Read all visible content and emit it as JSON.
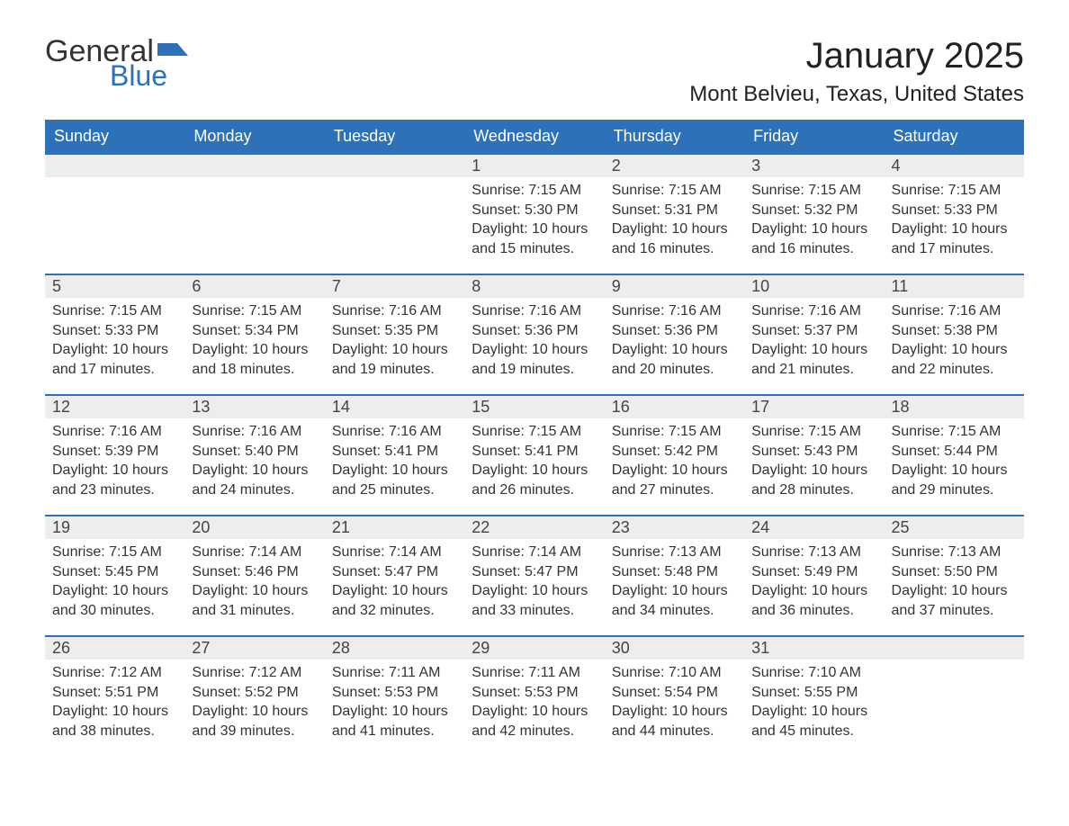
{
  "brand": {
    "word1": "General",
    "word2": "Blue",
    "accent_color": "#2d72b8"
  },
  "title": "January 2025",
  "location": "Mont Belvieu, Texas, United States",
  "colors": {
    "header_bg": "#2d72b8",
    "header_text": "#ffffff",
    "daynum_bg": "#ededed",
    "border_top": "#2d72b8",
    "body_text": "#333333"
  },
  "weekdays": [
    "Sunday",
    "Monday",
    "Tuesday",
    "Wednesday",
    "Thursday",
    "Friday",
    "Saturday"
  ],
  "weeks": [
    [
      {
        "day": "",
        "sunrise": "",
        "sunset": "",
        "daylight1": "",
        "daylight2": ""
      },
      {
        "day": "",
        "sunrise": "",
        "sunset": "",
        "daylight1": "",
        "daylight2": ""
      },
      {
        "day": "",
        "sunrise": "",
        "sunset": "",
        "daylight1": "",
        "daylight2": ""
      },
      {
        "day": "1",
        "sunrise": "Sunrise: 7:15 AM",
        "sunset": "Sunset: 5:30 PM",
        "daylight1": "Daylight: 10 hours",
        "daylight2": "and 15 minutes."
      },
      {
        "day": "2",
        "sunrise": "Sunrise: 7:15 AM",
        "sunset": "Sunset: 5:31 PM",
        "daylight1": "Daylight: 10 hours",
        "daylight2": "and 16 minutes."
      },
      {
        "day": "3",
        "sunrise": "Sunrise: 7:15 AM",
        "sunset": "Sunset: 5:32 PM",
        "daylight1": "Daylight: 10 hours",
        "daylight2": "and 16 minutes."
      },
      {
        "day": "4",
        "sunrise": "Sunrise: 7:15 AM",
        "sunset": "Sunset: 5:33 PM",
        "daylight1": "Daylight: 10 hours",
        "daylight2": "and 17 minutes."
      }
    ],
    [
      {
        "day": "5",
        "sunrise": "Sunrise: 7:15 AM",
        "sunset": "Sunset: 5:33 PM",
        "daylight1": "Daylight: 10 hours",
        "daylight2": "and 17 minutes."
      },
      {
        "day": "6",
        "sunrise": "Sunrise: 7:15 AM",
        "sunset": "Sunset: 5:34 PM",
        "daylight1": "Daylight: 10 hours",
        "daylight2": "and 18 minutes."
      },
      {
        "day": "7",
        "sunrise": "Sunrise: 7:16 AM",
        "sunset": "Sunset: 5:35 PM",
        "daylight1": "Daylight: 10 hours",
        "daylight2": "and 19 minutes."
      },
      {
        "day": "8",
        "sunrise": "Sunrise: 7:16 AM",
        "sunset": "Sunset: 5:36 PM",
        "daylight1": "Daylight: 10 hours",
        "daylight2": "and 19 minutes."
      },
      {
        "day": "9",
        "sunrise": "Sunrise: 7:16 AM",
        "sunset": "Sunset: 5:36 PM",
        "daylight1": "Daylight: 10 hours",
        "daylight2": "and 20 minutes."
      },
      {
        "day": "10",
        "sunrise": "Sunrise: 7:16 AM",
        "sunset": "Sunset: 5:37 PM",
        "daylight1": "Daylight: 10 hours",
        "daylight2": "and 21 minutes."
      },
      {
        "day": "11",
        "sunrise": "Sunrise: 7:16 AM",
        "sunset": "Sunset: 5:38 PM",
        "daylight1": "Daylight: 10 hours",
        "daylight2": "and 22 minutes."
      }
    ],
    [
      {
        "day": "12",
        "sunrise": "Sunrise: 7:16 AM",
        "sunset": "Sunset: 5:39 PM",
        "daylight1": "Daylight: 10 hours",
        "daylight2": "and 23 minutes."
      },
      {
        "day": "13",
        "sunrise": "Sunrise: 7:16 AM",
        "sunset": "Sunset: 5:40 PM",
        "daylight1": "Daylight: 10 hours",
        "daylight2": "and 24 minutes."
      },
      {
        "day": "14",
        "sunrise": "Sunrise: 7:16 AM",
        "sunset": "Sunset: 5:41 PM",
        "daylight1": "Daylight: 10 hours",
        "daylight2": "and 25 minutes."
      },
      {
        "day": "15",
        "sunrise": "Sunrise: 7:15 AM",
        "sunset": "Sunset: 5:41 PM",
        "daylight1": "Daylight: 10 hours",
        "daylight2": "and 26 minutes."
      },
      {
        "day": "16",
        "sunrise": "Sunrise: 7:15 AM",
        "sunset": "Sunset: 5:42 PM",
        "daylight1": "Daylight: 10 hours",
        "daylight2": "and 27 minutes."
      },
      {
        "day": "17",
        "sunrise": "Sunrise: 7:15 AM",
        "sunset": "Sunset: 5:43 PM",
        "daylight1": "Daylight: 10 hours",
        "daylight2": "and 28 minutes."
      },
      {
        "day": "18",
        "sunrise": "Sunrise: 7:15 AM",
        "sunset": "Sunset: 5:44 PM",
        "daylight1": "Daylight: 10 hours",
        "daylight2": "and 29 minutes."
      }
    ],
    [
      {
        "day": "19",
        "sunrise": "Sunrise: 7:15 AM",
        "sunset": "Sunset: 5:45 PM",
        "daylight1": "Daylight: 10 hours",
        "daylight2": "and 30 minutes."
      },
      {
        "day": "20",
        "sunrise": "Sunrise: 7:14 AM",
        "sunset": "Sunset: 5:46 PM",
        "daylight1": "Daylight: 10 hours",
        "daylight2": "and 31 minutes."
      },
      {
        "day": "21",
        "sunrise": "Sunrise: 7:14 AM",
        "sunset": "Sunset: 5:47 PM",
        "daylight1": "Daylight: 10 hours",
        "daylight2": "and 32 minutes."
      },
      {
        "day": "22",
        "sunrise": "Sunrise: 7:14 AM",
        "sunset": "Sunset: 5:47 PM",
        "daylight1": "Daylight: 10 hours",
        "daylight2": "and 33 minutes."
      },
      {
        "day": "23",
        "sunrise": "Sunrise: 7:13 AM",
        "sunset": "Sunset: 5:48 PM",
        "daylight1": "Daylight: 10 hours",
        "daylight2": "and 34 minutes."
      },
      {
        "day": "24",
        "sunrise": "Sunrise: 7:13 AM",
        "sunset": "Sunset: 5:49 PM",
        "daylight1": "Daylight: 10 hours",
        "daylight2": "and 36 minutes."
      },
      {
        "day": "25",
        "sunrise": "Sunrise: 7:13 AM",
        "sunset": "Sunset: 5:50 PM",
        "daylight1": "Daylight: 10 hours",
        "daylight2": "and 37 minutes."
      }
    ],
    [
      {
        "day": "26",
        "sunrise": "Sunrise: 7:12 AM",
        "sunset": "Sunset: 5:51 PM",
        "daylight1": "Daylight: 10 hours",
        "daylight2": "and 38 minutes."
      },
      {
        "day": "27",
        "sunrise": "Sunrise: 7:12 AM",
        "sunset": "Sunset: 5:52 PM",
        "daylight1": "Daylight: 10 hours",
        "daylight2": "and 39 minutes."
      },
      {
        "day": "28",
        "sunrise": "Sunrise: 7:11 AM",
        "sunset": "Sunset: 5:53 PM",
        "daylight1": "Daylight: 10 hours",
        "daylight2": "and 41 minutes."
      },
      {
        "day": "29",
        "sunrise": "Sunrise: 7:11 AM",
        "sunset": "Sunset: 5:53 PM",
        "daylight1": "Daylight: 10 hours",
        "daylight2": "and 42 minutes."
      },
      {
        "day": "30",
        "sunrise": "Sunrise: 7:10 AM",
        "sunset": "Sunset: 5:54 PM",
        "daylight1": "Daylight: 10 hours",
        "daylight2": "and 44 minutes."
      },
      {
        "day": "31",
        "sunrise": "Sunrise: 7:10 AM",
        "sunset": "Sunset: 5:55 PM",
        "daylight1": "Daylight: 10 hours",
        "daylight2": "and 45 minutes."
      },
      {
        "day": "",
        "sunrise": "",
        "sunset": "",
        "daylight1": "",
        "daylight2": ""
      }
    ]
  ]
}
